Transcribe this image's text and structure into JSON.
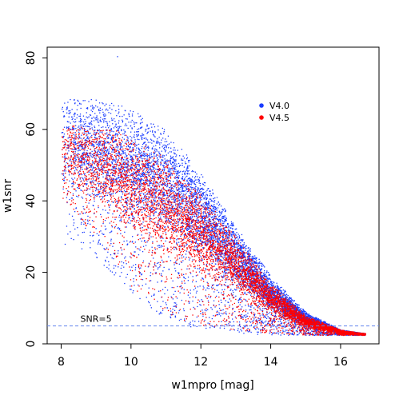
{
  "chart_data": {
    "type": "scatter",
    "title": "",
    "xlabel": "w1mpro [mag]",
    "ylabel": "w1snr",
    "xlim": [
      7.6,
      17.1
    ],
    "ylim": [
      0,
      83
    ],
    "xticks": [
      "8",
      "10",
      "12",
      "14",
      "16"
    ],
    "yticks": [
      "0",
      "20",
      "40",
      "60",
      "80"
    ],
    "grid": false,
    "legend_position": "top-right inside plot",
    "series": [
      {
        "name": "V4.0",
        "color": "#1a3cff",
        "marker": "dot",
        "envelope_upper": [
          [
            8.0,
            69
          ],
          [
            9.0,
            69
          ],
          [
            10.0,
            66
          ],
          [
            11.0,
            60
          ],
          [
            12.0,
            48
          ],
          [
            13.0,
            33
          ],
          [
            14.0,
            19
          ],
          [
            15.0,
            9
          ],
          [
            16.0,
            4
          ],
          [
            16.7,
            3
          ]
        ],
        "envelope_lower": [
          [
            8.0,
            30
          ],
          [
            9.0,
            24
          ],
          [
            10.0,
            14
          ],
          [
            11.0,
            7
          ],
          [
            12.0,
            4
          ],
          [
            13.0,
            3
          ],
          [
            14.0,
            2.5
          ],
          [
            15.0,
            2.5
          ],
          [
            16.0,
            2.5
          ],
          [
            16.7,
            2.5
          ]
        ],
        "density_core": [
          [
            8.0,
            55
          ],
          [
            9.0,
            54
          ],
          [
            10.0,
            52
          ],
          [
            11.0,
            50
          ],
          [
            12.0,
            42
          ],
          [
            13.0,
            28
          ],
          [
            14.0,
            15
          ],
          [
            15.0,
            7
          ],
          [
            16.0,
            3.5
          ],
          [
            16.7,
            3
          ]
        ]
      },
      {
        "name": "V4.5",
        "color": "#ff0000",
        "marker": "dot",
        "envelope_upper": [
          [
            8.0,
            62
          ],
          [
            9.0,
            62
          ],
          [
            10.0,
            58
          ],
          [
            11.0,
            52
          ],
          [
            12.0,
            42
          ],
          [
            13.0,
            30
          ],
          [
            14.0,
            17
          ],
          [
            15.0,
            8
          ],
          [
            16.0,
            4
          ],
          [
            16.7,
            3
          ]
        ],
        "envelope_lower": [
          [
            8.0,
            40
          ],
          [
            9.0,
            30
          ],
          [
            10.0,
            16
          ],
          [
            11.0,
            8
          ],
          [
            12.0,
            5
          ],
          [
            13.0,
            4
          ],
          [
            14.0,
            3
          ],
          [
            15.0,
            2.5
          ],
          [
            16.0,
            2.5
          ],
          [
            16.7,
            2.5
          ]
        ],
        "density_core": [
          [
            8.0,
            50
          ],
          [
            9.0,
            48
          ],
          [
            10.0,
            44
          ],
          [
            11.0,
            38
          ],
          [
            12.0,
            30
          ],
          [
            13.0,
            22
          ],
          [
            14.0,
            13
          ],
          [
            15.0,
            6
          ],
          [
            16.0,
            3.3
          ],
          [
            16.7,
            3
          ]
        ]
      }
    ],
    "reference_line": {
      "label": "SNR=5",
      "y": 5,
      "color": "#6688ee",
      "style": "dashed"
    },
    "outliers": [
      [
        9.6,
        80.5
      ],
      [
        8.1,
        28
      ],
      [
        9.5,
        22
      ]
    ]
  }
}
